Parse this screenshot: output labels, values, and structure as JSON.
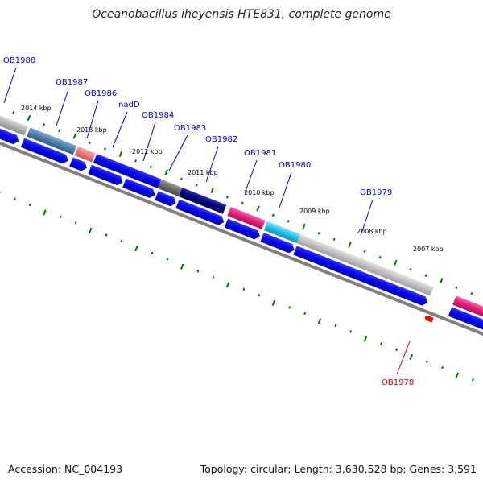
{
  "header": {
    "title": "Oceanobacillus iheyensis HTE831, complete genome"
  },
  "footer": {
    "accession": "Accession: NC_004193",
    "summary": "Topology: circular; Length: 3,630,528 bp; Genes: 3,591"
  },
  "colors": {
    "forward_gene": "#0000ee",
    "label_blue": "#0000cc",
    "label_red": "#cc0000",
    "reverse_marker": "#ff0000",
    "tick_green": "#007700",
    "backbone": "#808080"
  },
  "kbp_ticks": [
    "2014 kbp",
    "2013 kbp",
    "2012 kbp",
    "2011 kbp",
    "2010 kbp",
    "2009 kbp",
    "2008 kbp",
    "2007 kbp"
  ],
  "gene_labels": [
    {
      "name": "OB1988",
      "strand": "forward"
    },
    {
      "name": "OB1987",
      "strand": "forward"
    },
    {
      "name": "OB1986",
      "strand": "forward"
    },
    {
      "name": "nadD",
      "strand": "forward"
    },
    {
      "name": "OB1984",
      "strand": "forward"
    },
    {
      "name": "OB1983",
      "strand": "forward"
    },
    {
      "name": "OB1982",
      "strand": "forward"
    },
    {
      "name": "OB1981",
      "strand": "forward"
    },
    {
      "name": "OB1980",
      "strand": "forward"
    },
    {
      "name": "OB1979",
      "strand": "forward"
    },
    {
      "name": "OB1978",
      "strand": "reverse"
    }
  ],
  "feature_track_colors": [
    "#a8a8a8",
    "#4a7faa",
    "#e87878",
    "#0000ee",
    "#6a6a6a",
    "#000080",
    "#e8187a",
    "#20c0e8",
    "#b8b8b8",
    "#e8187a"
  ]
}
